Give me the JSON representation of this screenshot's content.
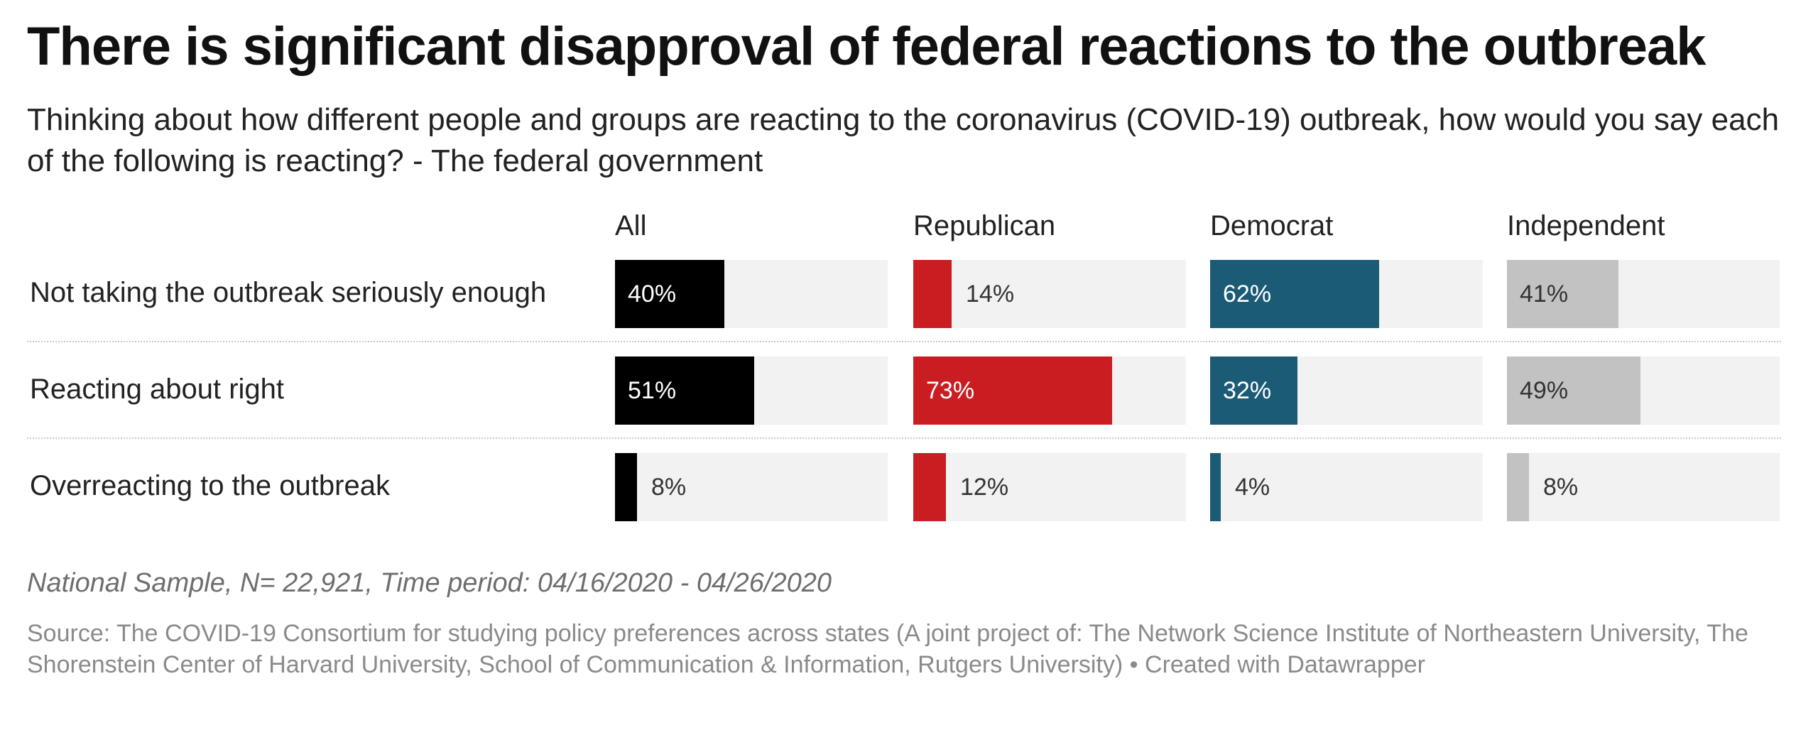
{
  "title": "There is significant disapproval of federal reactions to the outbreak",
  "subtitle": "Thinking about how different people and groups are reacting to the coronavirus (COVID-19) outbreak, how would you say each of the following is reacting? - The federal government",
  "notes": "National Sample, N= 22,921, Time period: 04/16/2020 - 04/26/2020",
  "source": "Source: The COVID-19 Consortium for studying policy preferences across states (A joint project of: The Network Science Institute of Northeastern University, The Shorenstein Center of Harvard University, School of Communication & Information, Rutgers University) • Created with Datawrapper",
  "chart_data": {
    "type": "bar",
    "categories": [
      "Not taking the outbreak seriously enough",
      "Reacting about right",
      "Overreacting to the outbreak"
    ],
    "series": [
      {
        "name": "All",
        "color": "#000000",
        "values": [
          40,
          51,
          8
        ],
        "labels": [
          "40%",
          "51%",
          "8%"
        ]
      },
      {
        "name": "Republican",
        "color": "#c91d22",
        "values": [
          14,
          73,
          12
        ],
        "labels": [
          "14%",
          "73%",
          "12%"
        ]
      },
      {
        "name": "Democrat",
        "color": "#1b5b76",
        "values": [
          62,
          32,
          4
        ],
        "labels": [
          "62%",
          "32%",
          "4%"
        ]
      },
      {
        "name": "Independent",
        "color": "#c2c2c2",
        "values": [
          41,
          49,
          8
        ],
        "labels": [
          "41%",
          "49%",
          "8%"
        ]
      }
    ],
    "xlim": [
      0,
      100
    ],
    "unit": "%"
  }
}
